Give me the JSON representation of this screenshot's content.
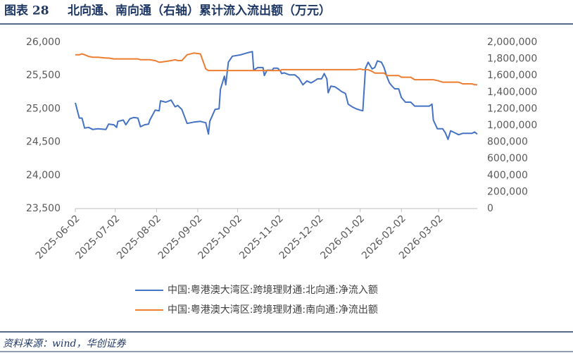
{
  "chart_data": {
    "type": "line",
    "label": "图表 28",
    "title": "北向通、南向通（右轴）累计流入流出额（万元）",
    "source": "资料来源：wind，华创证券",
    "x": [
      "2025-06-02",
      "2025-06-05",
      "2025-06-07",
      "2025-06-09",
      "2025-06-12",
      "2025-06-15",
      "2025-06-19",
      "2025-06-25",
      "2025-06-27",
      "2025-07-01",
      "2025-07-03",
      "2025-07-04",
      "2025-07-08",
      "2025-07-10",
      "2025-07-13",
      "2025-07-16",
      "2025-07-19",
      "2025-07-21",
      "2025-07-24",
      "2025-07-27",
      "2025-07-28",
      "2025-08-01",
      "2025-08-04",
      "2025-08-05",
      "2025-08-09",
      "2025-08-13",
      "2025-08-16",
      "2025-08-18",
      "2025-08-21",
      "2025-08-25",
      "2025-08-30",
      "2025-09-04",
      "2025-09-08",
      "2025-09-10",
      "2025-09-11",
      "2025-09-15",
      "2025-09-18",
      "2025-09-19",
      "2025-09-22",
      "2025-09-23",
      "2025-09-25",
      "2025-09-28",
      "2025-10-04",
      "2025-10-09",
      "2025-10-13",
      "2025-10-14",
      "2025-10-17",
      "2025-10-21",
      "2025-10-22",
      "2025-10-24",
      "2025-10-28",
      "2025-10-29",
      "2025-11-01",
      "2025-11-03",
      "2025-11-04",
      "2025-11-06",
      "2025-11-10",
      "2025-11-14",
      "2025-11-17",
      "2025-11-20",
      "2025-11-23",
      "2025-11-26",
      "2025-11-28",
      "2025-12-01",
      "2025-12-04",
      "2025-12-06",
      "2025-12-08",
      "2025-12-09",
      "2025-12-11",
      "2025-12-14",
      "2025-12-17",
      "2025-12-19",
      "2025-12-22",
      "2025-12-24",
      "2025-12-27",
      "2025-12-30",
      "2026-01-02",
      "2026-01-04",
      "2026-01-06",
      "2026-01-08",
      "2026-01-11",
      "2026-01-13",
      "2026-01-15",
      "2026-01-18",
      "2026-01-20",
      "2026-01-22",
      "2026-01-24",
      "2026-01-26",
      "2026-01-28",
      "2026-01-31",
      "2026-02-02",
      "2026-02-05",
      "2026-02-09",
      "2026-02-12",
      "2026-02-18",
      "2026-02-23",
      "2026-02-25",
      "2026-02-26",
      "2026-03-01",
      "2026-03-05",
      "2026-03-07",
      "2026-03-09",
      "2026-03-11",
      "2026-03-14",
      "2026-03-17",
      "2026-03-20",
      "2026-03-22",
      "2026-03-27",
      "2026-03-29",
      "2026-03-31"
    ],
    "xlim": [
      "2025-06-02",
      "2026-03-31"
    ],
    "xticks": [
      "2025-06-02",
      "2025-07-02",
      "2025-08-02",
      "2025-09-02",
      "2025-10-02",
      "2025-11-02",
      "2025-12-02",
      "2026-01-02",
      "2026-02-02",
      "2026-03-02"
    ],
    "ylim": [
      23500,
      26000
    ],
    "yticks": [
      {
        "value": 23500,
        "label": "23,500"
      },
      {
        "value": 24000,
        "label": "24,000"
      },
      {
        "value": 24500,
        "label": "24,500"
      },
      {
        "value": 25000,
        "label": "25,000"
      },
      {
        "value": 25500,
        "label": "25,500"
      },
      {
        "value": 26000,
        "label": "26,000"
      }
    ],
    "y2lim": [
      0,
      2000000
    ],
    "y2ticks": [
      0,
      {
        "value": 200000,
        "label": "200,000"
      },
      {
        "value": 400000,
        "label": "400,000"
      },
      {
        "value": 600000,
        "label": "600,000"
      },
      {
        "value": 800000,
        "label": "800,000"
      },
      {
        "value": 1000000,
        "label": "1,000,000"
      },
      {
        "value": 1200000,
        "label": "1,200,000"
      },
      {
        "value": 1400000,
        "label": "1,400,000"
      },
      {
        "value": 1600000,
        "label": "1,600,000"
      },
      {
        "value": 1800000,
        "label": "1,800,000"
      },
      {
        "value": 2000000,
        "label": "2,000,000"
      }
    ],
    "legend": "bottom",
    "series": [
      {
        "name": "中国:粤港澳大湾区:跨境理财通:北向通:净流入额",
        "color": "#4472c4",
        "values": [
          25090,
          24860,
          24860,
          24710,
          24720,
          24690,
          24700,
          24690,
          24770,
          24760,
          24720,
          24810,
          24830,
          24760,
          24850,
          24870,
          24860,
          24730,
          24760,
          24770,
          24830,
          24980,
          24970,
          25120,
          25100,
          25130,
          25030,
          25050,
          24990,
          24780,
          24800,
          24810,
          24790,
          24620,
          24810,
          24990,
          25000,
          25290,
          25490,
          25360,
          25700,
          25790,
          25810,
          25840,
          25860,
          25580,
          25620,
          25620,
          25500,
          25580,
          25580,
          25610,
          25610,
          25570,
          25530,
          25540,
          25510,
          25510,
          25460,
          25360,
          25420,
          25390,
          25410,
          25450,
          25450,
          25530,
          25450,
          25240,
          25340,
          25330,
          25290,
          25260,
          25230,
          25070,
          25030,
          25000,
          24980,
          24970,
          25610,
          25700,
          25600,
          25620,
          25720,
          25700,
          25620,
          25490,
          25390,
          25340,
          25300,
          25300,
          25170,
          25100,
          25100,
          25040,
          25040,
          25040,
          25070,
          24830,
          24700,
          24700,
          24640,
          24540,
          24670,
          24640,
          24610,
          24630,
          24630,
          24630,
          24650,
          24620
        ]
      },
      {
        "name": "中国:粤港澳大湾区:跨境理财通:南向通:净流出额",
        "color": "#ed7d31",
        "axis": "y2",
        "values": [
          1850000,
          1850000,
          1860000,
          1850000,
          1830000,
          1820000,
          1820000,
          1810000,
          1810000,
          1800000,
          1800000,
          1800000,
          1800000,
          1800000,
          1800000,
          1800000,
          1800000,
          1790000,
          1790000,
          1790000,
          1790000,
          1780000,
          1760000,
          1760000,
          1770000,
          1780000,
          1790000,
          1780000,
          1780000,
          1850000,
          1870000,
          1860000,
          1680000,
          1660000,
          1660000,
          1660000,
          1660000,
          1660000,
          1660000,
          1660000,
          1660000,
          1660000,
          1660000,
          1660000,
          1660000,
          1660000,
          1660000,
          1660000,
          1660000,
          1660000,
          1660000,
          1660000,
          1660000,
          1660000,
          1670000,
          1670000,
          1670000,
          1670000,
          1670000,
          1670000,
          1670000,
          1670000,
          1670000,
          1670000,
          1670000,
          1670000,
          1670000,
          1670000,
          1670000,
          1670000,
          1670000,
          1670000,
          1670000,
          1670000,
          1670000,
          1670000,
          1680000,
          1670000,
          1670000,
          1670000,
          1650000,
          1630000,
          1630000,
          1630000,
          1630000,
          1600000,
          1600000,
          1600000,
          1600000,
          1600000,
          1580000,
          1580000,
          1580000,
          1550000,
          1550000,
          1550000,
          1550000,
          1550000,
          1540000,
          1520000,
          1520000,
          1520000,
          1520000,
          1520000,
          1520000,
          1500000,
          1500000,
          1500000,
          1490000,
          1490000
        ]
      }
    ]
  }
}
